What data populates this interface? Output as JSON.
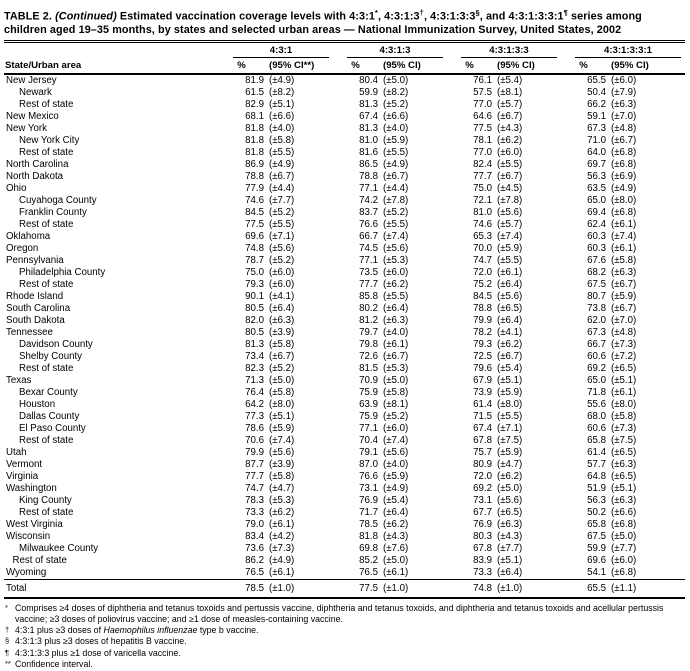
{
  "title": {
    "label": "TABLE 2.",
    "continued": "(Continued)",
    "s1": "Estimated vaccination coverage levels with 4:3:1",
    "sup1": "*",
    "s2": ", 4:3:1:3",
    "sup2": "†",
    "s3": ", 4:3:1:3:3",
    "sup3": "§",
    "s4": ", and 4:3:1:3:3:1",
    "sup4": "¶",
    "s5": "series among children aged 19–35 months, by states and selected urban areas — National Immunization Survey, United States, 2002"
  },
  "header": {
    "state_col": "State/Urban area",
    "groups": [
      {
        "series": "4:3:1",
        "pct": "%",
        "ci": "(95% CI**)"
      },
      {
        "series": "4:3:1:3",
        "pct": "%",
        "ci": "(95% CI)"
      },
      {
        "series": "4:3:1:3:3",
        "pct": "%",
        "ci": "(95% CI)"
      },
      {
        "series": "4:3:1:3:3:1",
        "pct": "%",
        "ci": "(95% CI)"
      }
    ]
  },
  "rows": [
    {
      "area": "New Jersey",
      "indent": 0,
      "is_total": false,
      "values": [
        "81.9",
        "(±4.9)",
        "80.4",
        "(±5.0)",
        "76.1",
        "(±5.4)",
        "65.5",
        "(±6.0)"
      ]
    },
    {
      "area": "Newark",
      "indent": 1,
      "is_total": false,
      "values": [
        "61.5",
        "(±8.2)",
        "59.9",
        "(±8.2)",
        "57.5",
        "(±8.1)",
        "50.4",
        "(±7.9)"
      ]
    },
    {
      "area": "Rest of state",
      "indent": 1,
      "is_total": false,
      "values": [
        "82.9",
        "(±5.1)",
        "81.3",
        "(±5.2)",
        "77.0",
        "(±5.7)",
        "66.2",
        "(±6.3)"
      ]
    },
    {
      "area": "New Mexico",
      "indent": 0,
      "is_total": false,
      "values": [
        "68.1",
        "(±6.6)",
        "67.4",
        "(±6.6)",
        "64.6",
        "(±6.7)",
        "59.1",
        "(±7.0)"
      ]
    },
    {
      "area": "New York",
      "indent": 0,
      "is_total": false,
      "values": [
        "81.8",
        "(±4.0)",
        "81.3",
        "(±4.0)",
        "77.5",
        "(±4.3)",
        "67.3",
        "(±4.8)"
      ]
    },
    {
      "area": "New York City",
      "indent": 1,
      "is_total": false,
      "values": [
        "81.8",
        "(±5.8)",
        "81.0",
        "(±5.9)",
        "78.1",
        "(±6.2)",
        "71.0",
        "(±6.7)"
      ]
    },
    {
      "area": "Rest of state",
      "indent": 1,
      "is_total": false,
      "values": [
        "81.8",
        "(±5.5)",
        "81.6",
        "(±5.5)",
        "77.0",
        "(±6.0)",
        "64.0",
        "(±6.8)"
      ]
    },
    {
      "area": "North Carolina",
      "indent": 0,
      "is_total": false,
      "values": [
        "86.9",
        "(±4.9)",
        "86.5",
        "(±4.9)",
        "82.4",
        "(±5.5)",
        "69.7",
        "(±6.8)"
      ]
    },
    {
      "area": "North Dakota",
      "indent": 0,
      "is_total": false,
      "values": [
        "78.8",
        "(±6.7)",
        "78.8",
        "(±6.7)",
        "77.7",
        "(±6.7)",
        "56.3",
        "(±6.9)"
      ]
    },
    {
      "area": "Ohio",
      "indent": 0,
      "is_total": false,
      "values": [
        "77.9",
        "(±4.4)",
        "77.1",
        "(±4.4)",
        "75.0",
        "(±4.5)",
        "63.5",
        "(±4.9)"
      ]
    },
    {
      "area": "Cuyahoga County",
      "indent": 1,
      "is_total": false,
      "values": [
        "74.6",
        "(±7.7)",
        "74.2",
        "(±7.8)",
        "72.1",
        "(±7.8)",
        "65.0",
        "(±8.0)"
      ]
    },
    {
      "area": "Franklin County",
      "indent": 1,
      "is_total": false,
      "values": [
        "84.5",
        "(±5.2)",
        "83.7",
        "(±5.2)",
        "81.0",
        "(±5.6)",
        "69.4",
        "(±6.8)"
      ]
    },
    {
      "area": "Rest of state",
      "indent": 1,
      "is_total": false,
      "values": [
        "77.5",
        "(±5.5)",
        "76.6",
        "(±5.5)",
        "74.6",
        "(±5.7)",
        "62.4",
        "(±6.1)"
      ]
    },
    {
      "area": "Oklahoma",
      "indent": 0,
      "is_total": false,
      "values": [
        "69.6",
        "(±7.1)",
        "66.7",
        "(±7.4)",
        "65.3",
        "(±7.4)",
        "60.3",
        "(±7.4)"
      ]
    },
    {
      "area": "Oregon",
      "indent": 0,
      "is_total": false,
      "values": [
        "74.8",
        "(±5.6)",
        "74.5",
        "(±5.6)",
        "70.0",
        "(±5.9)",
        "60.3",
        "(±6.1)"
      ]
    },
    {
      "area": "Pennsylvania",
      "indent": 0,
      "is_total": false,
      "values": [
        "78.7",
        "(±5.2)",
        "77.1",
        "(±5.3)",
        "74.7",
        "(±5.5)",
        "67.6",
        "(±5.8)"
      ]
    },
    {
      "area": "Philadelphia County",
      "indent": 1,
      "is_total": false,
      "values": [
        "75.0",
        "(±6.0)",
        "73.5",
        "(±6.0)",
        "72.0",
        "(±6.1)",
        "68.2",
        "(±6.3)"
      ]
    },
    {
      "area": "Rest of state",
      "indent": 1,
      "is_total": false,
      "values": [
        "79.3",
        "(±6.0)",
        "77.7",
        "(±6.2)",
        "75.2",
        "(±6.4)",
        "67.5",
        "(±6.7)"
      ]
    },
    {
      "area": "Rhode Island",
      "indent": 0,
      "is_total": false,
      "values": [
        "90.1",
        "(±4.1)",
        "85.8",
        "(±5.5)",
        "84.5",
        "(±5.6)",
        "80.7",
        "(±5.9)"
      ]
    },
    {
      "area": "South Carolina",
      "indent": 0,
      "is_total": false,
      "values": [
        "80.5",
        "(±6.4)",
        "80.2",
        "(±6.4)",
        "78.8",
        "(±6.5)",
        "73.8",
        "(±6.7)"
      ]
    },
    {
      "area": "South Dakota",
      "indent": 0,
      "is_total": false,
      "values": [
        "82.0",
        "(±6.3)",
        "81.2",
        "(±6.3)",
        "79.9",
        "(±6.4)",
        "62.0",
        "(±7.0)"
      ]
    },
    {
      "area": "Tennessee",
      "indent": 0,
      "is_total": false,
      "values": [
        "80.5",
        "(±3.9)",
        "79.7",
        "(±4.0)",
        "78.2",
        "(±4.1)",
        "67.3",
        "(±4.8)"
      ]
    },
    {
      "area": "Davidson County",
      "indent": 1,
      "is_total": false,
      "values": [
        "81.3",
        "(±5.8)",
        "79.8",
        "(±6.1)",
        "79.3",
        "(±6.2)",
        "66.7",
        "(±7.3)"
      ]
    },
    {
      "area": "Shelby County",
      "indent": 1,
      "is_total": false,
      "values": [
        "73.4",
        "(±6.7)",
        "72.6",
        "(±6.7)",
        "72.5",
        "(±6.7)",
        "60.6",
        "(±7.2)"
      ]
    },
    {
      "area": "Rest of state",
      "indent": 1,
      "is_total": false,
      "values": [
        "82.3",
        "(±5.2)",
        "81.5",
        "(±5.3)",
        "79.6",
        "(±5.4)",
        "69.2",
        "(±6.5)"
      ]
    },
    {
      "area": "Texas",
      "indent": 0,
      "is_total": false,
      "values": [
        "71.3",
        "(±5.0)",
        "70.9",
        "(±5.0)",
        "67.9",
        "(±5.1)",
        "65.0",
        "(±5.1)"
      ]
    },
    {
      "area": "Bexar County",
      "indent": 1,
      "is_total": false,
      "values": [
        "76.4",
        "(±5.8)",
        "75.9",
        "(±5.8)",
        "73.9",
        "(±5.9)",
        "71.8",
        "(±6.1)"
      ]
    },
    {
      "area": "Houston",
      "indent": 1,
      "is_total": false,
      "values": [
        "64.2",
        "(±8.0)",
        "63.9",
        "(±8.1)",
        "61.4",
        "(±8.0)",
        "55.6",
        "(±8.0)"
      ]
    },
    {
      "area": "Dallas County",
      "indent": 1,
      "is_total": false,
      "values": [
        "77.3",
        "(±5.1)",
        "75.9",
        "(±5.2)",
        "71.5",
        "(±5.5)",
        "68.0",
        "(±5.8)"
      ]
    },
    {
      "area": "El Paso County",
      "indent": 1,
      "is_total": false,
      "values": [
        "78.6",
        "(±5.9)",
        "77.1",
        "(±6.0)",
        "67.4",
        "(±7.1)",
        "60.6",
        "(±7.3)"
      ]
    },
    {
      "area": "Rest of state",
      "indent": 1,
      "is_total": false,
      "values": [
        "70.6",
        "(±7.4)",
        "70.4",
        "(±7.4)",
        "67.8",
        "(±7.5)",
        "65.8",
        "(±7.5)"
      ]
    },
    {
      "area": "Utah",
      "indent": 0,
      "is_total": false,
      "values": [
        "79.9",
        "(±5.6)",
        "79.1",
        "(±5.6)",
        "75.7",
        "(±5.9)",
        "61.4",
        "(±6.5)"
      ]
    },
    {
      "area": "Vermont",
      "indent": 0,
      "is_total": false,
      "values": [
        "87.7",
        "(±3.9)",
        "87.0",
        "(±4.0)",
        "80.9",
        "(±4.7)",
        "57.7",
        "(±6.3)"
      ]
    },
    {
      "area": "Virginia",
      "indent": 0,
      "is_total": false,
      "values": [
        "77.7",
        "(±5.8)",
        "76.6",
        "(±5.9)",
        "72.0",
        "(±6.2)",
        "64.8",
        "(±6.5)"
      ]
    },
    {
      "area": "Washington",
      "indent": 0,
      "is_total": false,
      "values": [
        "74.7",
        "(±4.7)",
        "73.1",
        "(±4.9)",
        "69.2",
        "(±5.0)",
        "51.9",
        "(±5.1)"
      ]
    },
    {
      "area": "King County",
      "indent": 1,
      "is_total": false,
      "values": [
        "78.3",
        "(±5.3)",
        "76.9",
        "(±5.4)",
        "73.1",
        "(±5.6)",
        "56.3",
        "(±6.3)"
      ]
    },
    {
      "area": "Rest of state",
      "indent": 1,
      "is_total": false,
      "values": [
        "73.3",
        "(±6.2)",
        "71.7",
        "(±6.4)",
        "67.7",
        "(±6.5)",
        "50.2",
        "(±6.6)"
      ]
    },
    {
      "area": "West Virginia",
      "indent": 0,
      "is_total": false,
      "values": [
        "79.0",
        "(±6.1)",
        "78.5",
        "(±6.2)",
        "76.9",
        "(±6.3)",
        "65.8",
        "(±6.8)"
      ]
    },
    {
      "area": "Wisconsin",
      "indent": 0,
      "is_total": false,
      "values": [
        "83.4",
        "(±4.2)",
        "81.8",
        "(±4.3)",
        "80.3",
        "(±4.3)",
        "67.5",
        "(±5.0)"
      ]
    },
    {
      "area": "Milwaukee County",
      "indent": 1,
      "is_total": false,
      "values": [
        "73.6",
        "(±7.3)",
        "69.8",
        "(±7.6)",
        "67.8",
        "(±7.7)",
        "59.9",
        "(±7.7)"
      ]
    },
    {
      "area": "Rest of state",
      "indent": 0.5,
      "is_total": false,
      "values": [
        "86.2",
        "(±4.9)",
        "85.2",
        "(±5.0)",
        "83.9",
        "(±5.1)",
        "69.6",
        "(±6.0)"
      ]
    },
    {
      "area": "Wyoming",
      "indent": 0,
      "is_total": false,
      "values": [
        "76.5",
        "(±6.1)",
        "76.5",
        "(±6.1)",
        "73.3",
        "(±6.4)",
        "54.1",
        "(±6.8)"
      ]
    },
    {
      "area": "Total",
      "indent": 0,
      "is_total": true,
      "values": [
        "78.5",
        "(±1.0)",
        "77.5",
        "(±1.0)",
        "74.8",
        "(±1.0)",
        "65.5",
        "(±1.1)"
      ]
    }
  ],
  "footnotes": [
    {
      "marker": "*",
      "pre": "Comprises ≥4 doses of diphtheria and tetanus toxoids and pertussis vaccine, diphtheria and tetanus toxoids, and diphtheria and tetanus toxoids and acellular pertussis vaccine; ≥3 doses of poliovirus vaccine; and ≥1 dose of measles-containing vaccine.",
      "italic": "",
      "post": ""
    },
    {
      "marker": "†",
      "pre": "4:3:1 plus ≥3 doses of ",
      "italic": "Haemophilus influenzae",
      "post": " type b vaccine."
    },
    {
      "marker": "§",
      "pre": "4:3:1:3 plus ≥3 doses of hepatitis B vaccine.",
      "italic": "",
      "post": ""
    },
    {
      "marker": "¶",
      "pre": "4:3:1:3:3 plus ≥1 dose of varicella vaccine.",
      "italic": "",
      "post": ""
    },
    {
      "marker": "**",
      "pre": "Confidence interval.",
      "italic": "",
      "post": ""
    }
  ]
}
